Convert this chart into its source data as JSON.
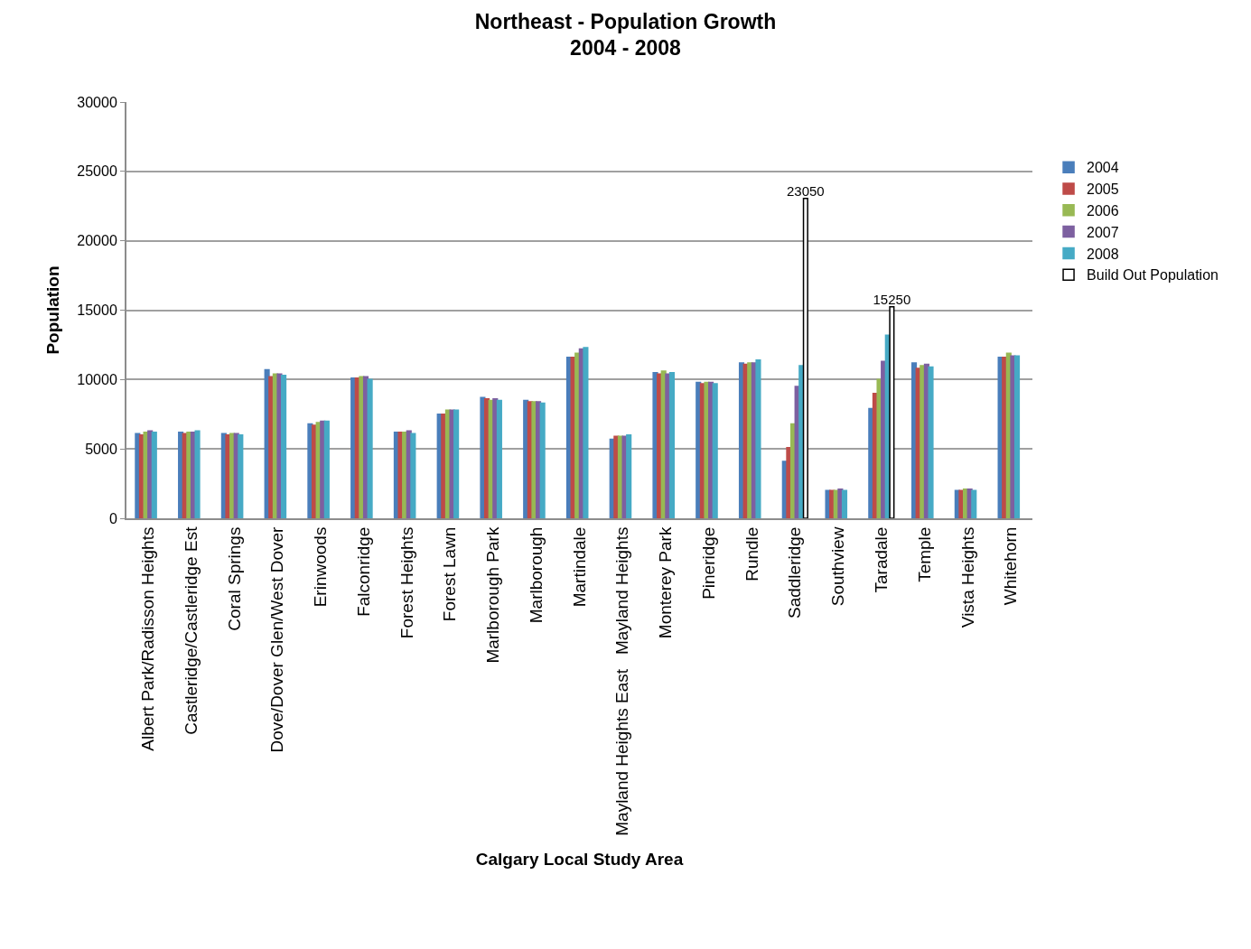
{
  "chart_data": {
    "type": "bar",
    "title": "Northeast - Population Growth\n2004 - 2008",
    "xlabel": "Calgary Local Study Area",
    "ylabel": "Population",
    "categories": [
      "Albert Park/Radisson Heights",
      "Castleridge/Castleridge Est",
      "Coral Springs",
      "Dove/Dover Glen/West Dover",
      "Erinwoods",
      "Falconridge",
      "Forest Heights",
      "Forest Lawn",
      "Marlborough Park",
      "Marlborough",
      "Martindale",
      "Mayland Heights East   Mayland Heights",
      "Monterey Park",
      "Pineridge",
      "Rundle",
      "Saddleridge",
      "Southview",
      "Taradale",
      "Temple",
      "Vista Heights",
      "Whitehorn"
    ],
    "series": [
      {
        "name": "2004",
        "color": "#4a7ebb",
        "values": [
          6100,
          6200,
          6100,
          10700,
          6800,
          10100,
          6200,
          7500,
          8700,
          8500,
          11600,
          5700,
          10500,
          9800,
          11200,
          4100,
          2000,
          7900,
          11200,
          2000,
          11600
        ]
      },
      {
        "name": "2005",
        "color": "#be4b48",
        "values": [
          6000,
          6100,
          6000,
          10200,
          6700,
          10100,
          6200,
          7500,
          8600,
          8400,
          11600,
          5900,
          10400,
          9700,
          11100,
          5100,
          2000,
          9000,
          10800,
          2000,
          11600
        ]
      },
      {
        "name": "2006",
        "color": "#98b954",
        "values": [
          6200,
          6200,
          6100,
          10400,
          6900,
          10200,
          6200,
          7800,
          8500,
          8400,
          11900,
          5900,
          10600,
          9800,
          11200,
          6800,
          2000,
          10000,
          11000,
          2100,
          11900
        ]
      },
      {
        "name": "2007",
        "color": "#7d60a0",
        "values": [
          6300,
          6200,
          6100,
          10400,
          7000,
          10200,
          6300,
          7800,
          8600,
          8400,
          12200,
          5900,
          10400,
          9800,
          11200,
          9500,
          2100,
          11300,
          11100,
          2100,
          11700
        ]
      },
      {
        "name": "2008",
        "color": "#46aac5",
        "values": [
          6200,
          6300,
          6000,
          10300,
          7000,
          10000,
          6100,
          7800,
          8500,
          8300,
          12300,
          6000,
          10500,
          9700,
          11400,
          11000,
          2000,
          13200,
          10900,
          2000,
          11700
        ]
      },
      {
        "name": "Build Out Population",
        "color": "#ffffff",
        "values": [
          null,
          null,
          null,
          null,
          null,
          null,
          null,
          null,
          null,
          null,
          null,
          null,
          null,
          null,
          null,
          23050,
          null,
          15250,
          null,
          null,
          null
        ],
        "value_labels": [
          null,
          null,
          null,
          null,
          null,
          null,
          null,
          null,
          null,
          null,
          null,
          null,
          null,
          null,
          null,
          "23050",
          null,
          "15250",
          null,
          null,
          null
        ]
      }
    ],
    "ylim": [
      0,
      30000
    ],
    "yticks": [
      0,
      5000,
      10000,
      15000,
      20000,
      25000,
      30000
    ],
    "grid": "y",
    "legend": "right"
  }
}
